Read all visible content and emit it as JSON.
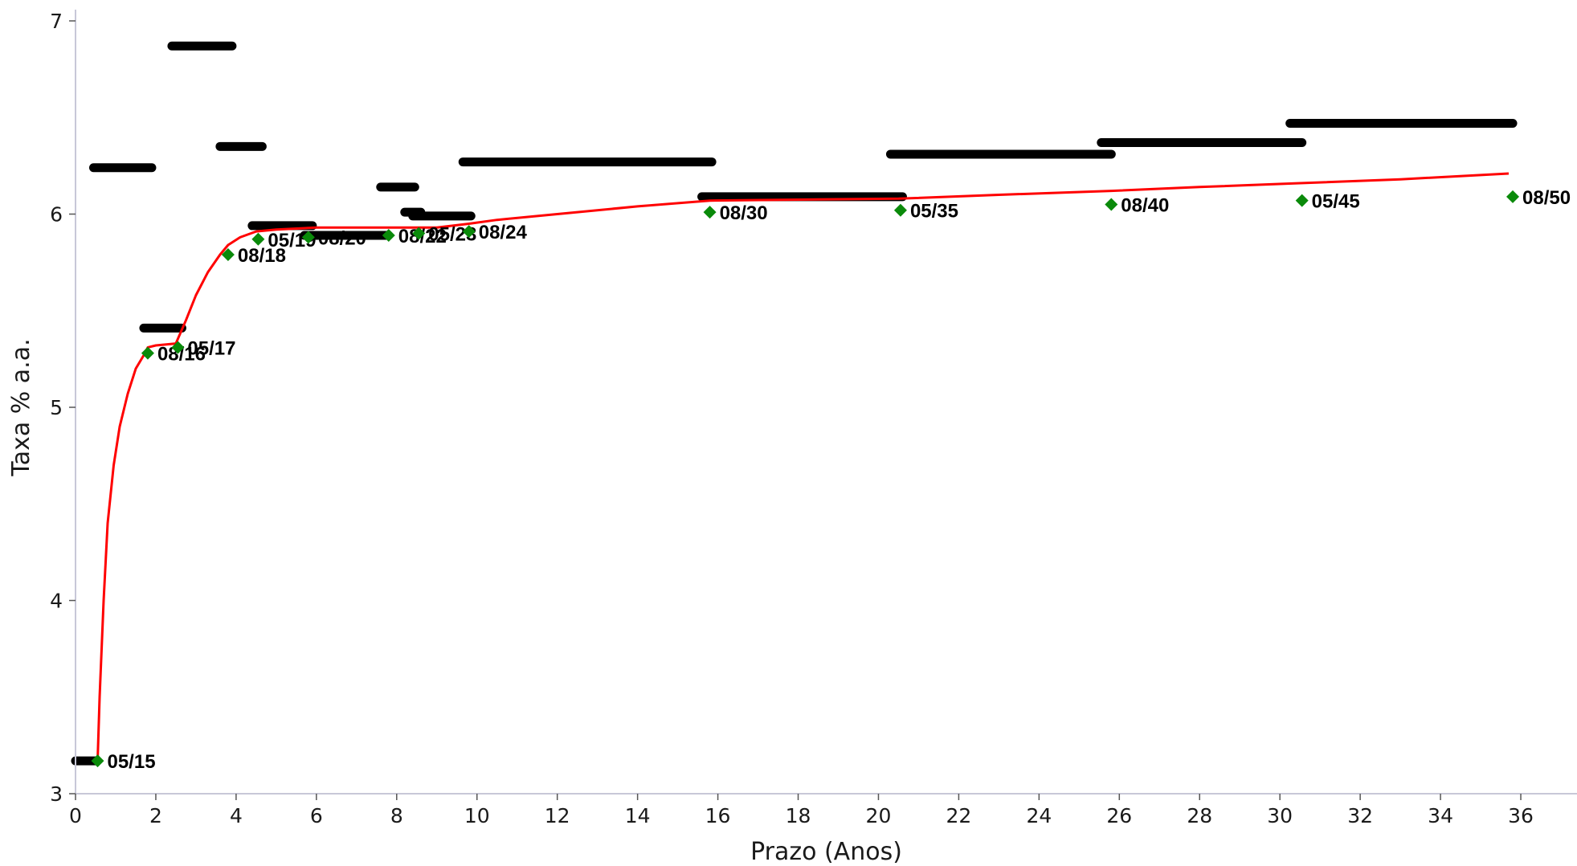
{
  "chart_data": {
    "type": "line",
    "xlabel": "Prazo (Anos)",
    "ylabel": "Taxa % a.a.",
    "xlim": [
      0,
      37.4
    ],
    "ylim": [
      3,
      7
    ],
    "xticks": [
      0,
      2,
      4,
      6,
      8,
      10,
      12,
      14,
      16,
      18,
      20,
      22,
      24,
      26,
      28,
      30,
      32,
      34,
      36
    ],
    "yticks": [
      3,
      4,
      5,
      6,
      7
    ],
    "grid": false,
    "colors": {
      "curve": "#ff0000",
      "points": "#0a8a0a",
      "bars": "#000000",
      "axis": "#c8c8d8"
    },
    "bars": [
      {
        "x0": 0.0,
        "x1": 0.5,
        "y": 3.17
      },
      {
        "x0": 0.45,
        "x1": 1.9,
        "y": 6.24
      },
      {
        "x0": 1.7,
        "x1": 2.65,
        "y": 5.41
      },
      {
        "x0": 2.4,
        "x1": 3.9,
        "y": 6.87
      },
      {
        "x0": 3.6,
        "x1": 4.65,
        "y": 6.35
      },
      {
        "x0": 4.4,
        "x1": 5.9,
        "y": 5.94
      },
      {
        "x0": 5.7,
        "x1": 7.8,
        "y": 5.89
      },
      {
        "x0": 7.6,
        "x1": 8.45,
        "y": 6.14
      },
      {
        "x0": 8.2,
        "x1": 8.6,
        "y": 6.01
      },
      {
        "x0": 8.4,
        "x1": 9.85,
        "y": 5.99
      },
      {
        "x0": 9.65,
        "x1": 15.85,
        "y": 6.27
      },
      {
        "x0": 15.6,
        "x1": 20.6,
        "y": 6.09
      },
      {
        "x0": 20.3,
        "x1": 25.8,
        "y": 6.31
      },
      {
        "x0": 25.55,
        "x1": 30.55,
        "y": 6.37
      },
      {
        "x0": 30.25,
        "x1": 35.8,
        "y": 6.47
      }
    ],
    "points": [
      {
        "label": "05/15",
        "x": 0.55,
        "y": 3.17
      },
      {
        "label": "08/16",
        "x": 1.8,
        "y": 5.28
      },
      {
        "label": "05/17",
        "x": 2.55,
        "y": 5.31
      },
      {
        "label": "08/18",
        "x": 3.8,
        "y": 5.79
      },
      {
        "label": "05/19",
        "x": 4.55,
        "y": 5.87
      },
      {
        "label": "08/20",
        "x": 5.8,
        "y": 5.88
      },
      {
        "label": "08/22",
        "x": 7.8,
        "y": 5.89
      },
      {
        "label": "05/23",
        "x": 8.55,
        "y": 5.9
      },
      {
        "label": "08/24",
        "x": 9.8,
        "y": 5.91
      },
      {
        "label": "08/30",
        "x": 15.8,
        "y": 6.01
      },
      {
        "label": "05/35",
        "x": 20.55,
        "y": 6.02
      },
      {
        "label": "08/40",
        "x": 25.8,
        "y": 6.05
      },
      {
        "label": "05/45",
        "x": 30.55,
        "y": 6.07
      },
      {
        "label": "08/50",
        "x": 35.8,
        "y": 6.09
      }
    ],
    "curve": [
      [
        0.55,
        3.17
      ],
      [
        0.6,
        3.5
      ],
      [
        0.7,
        4.0
      ],
      [
        0.8,
        4.4
      ],
      [
        0.95,
        4.7
      ],
      [
        1.1,
        4.9
      ],
      [
        1.3,
        5.07
      ],
      [
        1.5,
        5.2
      ],
      [
        1.7,
        5.27
      ],
      [
        1.8,
        5.31
      ],
      [
        2.0,
        5.32
      ],
      [
        2.5,
        5.33
      ],
      [
        2.75,
        5.45
      ],
      [
        3.0,
        5.58
      ],
      [
        3.3,
        5.7
      ],
      [
        3.6,
        5.79
      ],
      [
        3.8,
        5.84
      ],
      [
        4.1,
        5.88
      ],
      [
        4.5,
        5.91
      ],
      [
        5.0,
        5.92
      ],
      [
        6.0,
        5.93
      ],
      [
        7.0,
        5.93
      ],
      [
        8.0,
        5.93
      ],
      [
        9.0,
        5.93
      ],
      [
        9.8,
        5.95
      ],
      [
        10.5,
        5.97
      ],
      [
        12.0,
        6.0
      ],
      [
        14.0,
        6.04
      ],
      [
        15.8,
        6.07
      ],
      [
        18.0,
        6.075
      ],
      [
        20.5,
        6.08
      ],
      [
        23.0,
        6.1
      ],
      [
        25.8,
        6.12
      ],
      [
        28.0,
        6.14
      ],
      [
        30.5,
        6.16
      ],
      [
        33.0,
        6.18
      ],
      [
        35.7,
        6.21
      ]
    ]
  }
}
